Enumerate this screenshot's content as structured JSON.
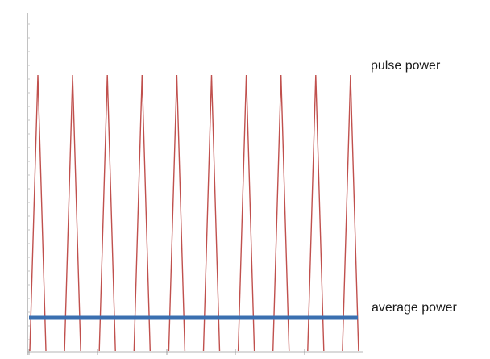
{
  "chart_data": {
    "type": "line",
    "title": "",
    "xlabel": "",
    "ylabel": "",
    "grid": false,
    "ylim": [
      0,
      100
    ],
    "pulses": {
      "count": 10,
      "peak": 100,
      "baseline": 0,
      "color": "#c0504d"
    },
    "average": {
      "value": 12,
      "color": "#3a6fb0"
    },
    "annotations": {
      "pulse_label": "pulse power",
      "average_label": "average power"
    }
  }
}
